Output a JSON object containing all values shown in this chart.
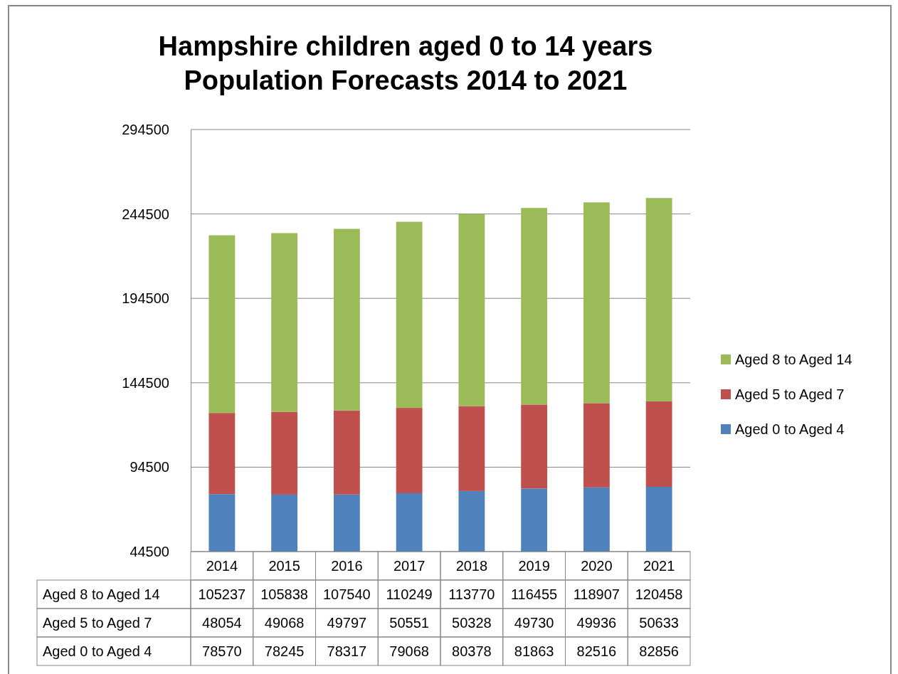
{
  "chart_data": {
    "type": "bar",
    "title": "Hampshire children aged 0 to 14 years\nPopulation Forecasts 2014 to 2021",
    "categories": [
      "2014",
      "2015",
      "2016",
      "2017",
      "2018",
      "2019",
      "2020",
      "2021"
    ],
    "stacked": true,
    "series": [
      {
        "name": "Aged 0 to Aged 4",
        "color": "#4f81bd",
        "values": [
          78570,
          78245,
          78317,
          79068,
          80378,
          81863,
          82516,
          82856
        ]
      },
      {
        "name": "Aged 5 to Aged 7",
        "color": "#c0504d",
        "values": [
          48054,
          49068,
          49797,
          50551,
          50328,
          49730,
          49936,
          50633
        ]
      },
      {
        "name": "Aged 8 to Aged 14",
        "color": "#9bbb59",
        "values": [
          105237,
          105838,
          107540,
          110249,
          113770,
          116455,
          118907,
          120458
        ]
      }
    ],
    "ylim": [
      44500,
      294500
    ],
    "yticks": [
      44500,
      94500,
      144500,
      194500,
      244500,
      294500
    ],
    "grid": "y",
    "legend": "right",
    "data_labels": true
  }
}
